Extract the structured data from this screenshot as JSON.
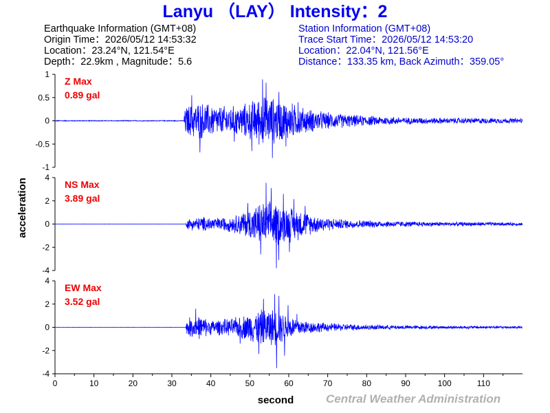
{
  "header": {
    "title": "Lanyu （LAY） Intensity：2"
  },
  "earthquake_info": {
    "heading": "Earthquake Information  (GMT+08)",
    "origin_time": "Origin Time：2026/05/12 14:53:32",
    "location": "Location：23.24°N, 121.54°E",
    "depth_magnitude": "Depth：22.9km , Magnitude：5.6"
  },
  "station_info": {
    "heading": "Station Information  (GMT+08)",
    "trace_start": "Trace Start Time：2026/05/12 14:53:20",
    "location": "Location：22.04°N, 121.56°E",
    "distance_azimuth": "Distance：133.35 km, Back Azimuth：359.05°"
  },
  "footer": {
    "agency": "Central Weather Administration"
  },
  "colors": {
    "trace": "#0000ff",
    "max_label": "#ee0000",
    "title": "#0000ee",
    "station_text": "#0000cc",
    "footer": "#b0b0b0"
  },
  "chart_data": {
    "type": "line",
    "xlabel": "second",
    "ylabel": "acceleration",
    "xlim": [
      0,
      120
    ],
    "x_ticks": [
      0,
      10,
      20,
      30,
      40,
      50,
      60,
      70,
      80,
      90,
      100,
      110
    ],
    "panels": [
      {
        "name": "Z",
        "max_label": "Z Max",
        "max_value": "0.89 gal",
        "ylim": [
          -1,
          1
        ],
        "y_ticks": [
          1,
          0.5,
          0,
          -0.5,
          -1
        ],
        "y_tick_labels": [
          "1",
          "0.5",
          "0",
          "-0.5",
          "-1"
        ],
        "envelope": [
          [
            0,
            0.01
          ],
          [
            33,
            0.01
          ],
          [
            33.5,
            0.35
          ],
          [
            37,
            0.45
          ],
          [
            42,
            0.35
          ],
          [
            47,
            0.35
          ],
          [
            50,
            0.45
          ],
          [
            53,
            0.6
          ],
          [
            56,
            0.55
          ],
          [
            60,
            0.45
          ],
          [
            64,
            0.3
          ],
          [
            70,
            0.2
          ],
          [
            78,
            0.13
          ],
          [
            90,
            0.08
          ],
          [
            100,
            0.07
          ],
          [
            120,
            0.06
          ]
        ],
        "peaks": [
          [
            53.3,
            0.89
          ],
          [
            55.8,
            -0.8
          ],
          [
            54.2,
            0.82
          ],
          [
            37.2,
            -0.68
          ],
          [
            35.1,
            0.55
          ],
          [
            57.5,
            0.62
          ],
          [
            50.5,
            -0.65
          ],
          [
            59.3,
            -0.55
          ],
          [
            62.4,
            0.4
          ],
          [
            46,
            -0.45
          ]
        ]
      },
      {
        "name": "NS",
        "max_label": "NS Max",
        "max_value": "3.89 gal",
        "ylim": [
          -4,
          4
        ],
        "y_ticks": [
          4,
          2,
          0,
          -2,
          -4
        ],
        "y_tick_labels": [
          "4",
          "2",
          "0",
          "-2",
          "-4"
        ],
        "envelope": [
          [
            0,
            0.01
          ],
          [
            33.5,
            0.01
          ],
          [
            34,
            0.5
          ],
          [
            38,
            0.7
          ],
          [
            42,
            0.6
          ],
          [
            46,
            0.8
          ],
          [
            50,
            1.5
          ],
          [
            53,
            2.0
          ],
          [
            56,
            2.1
          ],
          [
            60,
            1.7
          ],
          [
            63,
            1.4
          ],
          [
            66,
            0.9
          ],
          [
            72,
            0.5
          ],
          [
            80,
            0.35
          ],
          [
            90,
            0.25
          ],
          [
            100,
            0.2
          ],
          [
            120,
            0.15
          ]
        ],
        "peaks": [
          [
            54.2,
            3.55
          ],
          [
            56.8,
            -3.8
          ],
          [
            55.5,
            3.1
          ],
          [
            58.6,
            2.6
          ],
          [
            61.3,
            2.15
          ],
          [
            52.8,
            -2.6
          ],
          [
            57.4,
            -3.1
          ],
          [
            60.2,
            -2.4
          ],
          [
            64.2,
            1.55
          ],
          [
            49.5,
            1.8
          ]
        ]
      },
      {
        "name": "EW",
        "max_label": "EW Max",
        "max_value": "3.52 gal",
        "ylim": [
          -4,
          4
        ],
        "y_ticks": [
          4,
          2,
          0,
          -2,
          -4
        ],
        "y_tick_labels": [
          "4",
          "2",
          "0",
          "-2",
          "-4"
        ],
        "envelope": [
          [
            0,
            0.01
          ],
          [
            33.5,
            0.01
          ],
          [
            34,
            0.9
          ],
          [
            37,
            1.1
          ],
          [
            40,
            0.7
          ],
          [
            45,
            0.8
          ],
          [
            48,
            1.1
          ],
          [
            52,
            1.6
          ],
          [
            55,
            1.8
          ],
          [
            58,
            1.5
          ],
          [
            61,
            1.0
          ],
          [
            65,
            0.6
          ],
          [
            70,
            0.4
          ],
          [
            80,
            0.25
          ],
          [
            90,
            0.18
          ],
          [
            100,
            0.15
          ],
          [
            120,
            0.12
          ]
        ],
        "peaks": [
          [
            56.9,
            -3.52
          ],
          [
            56.4,
            2.85
          ],
          [
            57.5,
            2.7
          ],
          [
            53.5,
            2.45
          ],
          [
            52.3,
            -2.3
          ],
          [
            36.1,
            1.6
          ],
          [
            58.9,
            -2.45
          ],
          [
            59.8,
            1.9
          ],
          [
            62.1,
            1.15
          ],
          [
            47.5,
            -1.4
          ]
        ]
      }
    ]
  }
}
